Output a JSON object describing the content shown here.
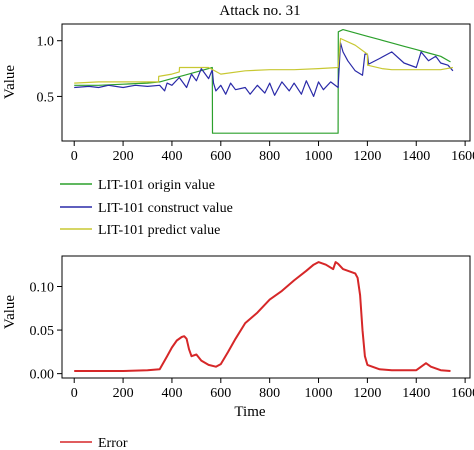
{
  "chart_data": [
    {
      "type": "line",
      "title": "Attack no. 31",
      "xlabel": "",
      "ylabel": "Value",
      "xlim": [
        -50,
        1620
      ],
      "ylim": [
        0.1,
        1.15
      ],
      "xticks": [
        0,
        200,
        400,
        600,
        800,
        1000,
        1200,
        1400,
        1600
      ],
      "yticks": [
        0.5,
        1.0
      ],
      "ytick_labels": [
        "0.5",
        "1.0"
      ],
      "legend_position": "below",
      "series": [
        {
          "name": "LIT-101 origin value",
          "color": "#2ca02c",
          "x": [
            0,
            100,
            200,
            300,
            350,
            400,
            450,
            500,
            550,
            565,
            566,
            700,
            900,
            1080,
            1081,
            1100,
            1150,
            1200,
            1250,
            1300,
            1350,
            1400,
            1450,
            1500,
            1540
          ],
          "y": [
            0.6,
            0.6,
            0.61,
            0.62,
            0.63,
            0.66,
            0.69,
            0.72,
            0.75,
            0.76,
            0.17,
            0.17,
            0.17,
            0.17,
            1.08,
            1.1,
            1.07,
            1.04,
            1.01,
            0.98,
            0.95,
            0.92,
            0.89,
            0.86,
            0.81
          ]
        },
        {
          "name": "LIT-101 construct value",
          "color": "#2a2aa8",
          "x": [
            0,
            60,
            100,
            140,
            200,
            250,
            300,
            350,
            370,
            380,
            400,
            430,
            460,
            480,
            500,
            520,
            550,
            565,
            570,
            580,
            600,
            620,
            640,
            660,
            700,
            720,
            750,
            780,
            800,
            820,
            850,
            880,
            900,
            930,
            950,
            980,
            1000,
            1020,
            1050,
            1080,
            1090,
            1100,
            1120,
            1150,
            1180,
            1190,
            1200,
            1205,
            1250,
            1300,
            1350,
            1400,
            1420,
            1450,
            1480,
            1500,
            1530,
            1550
          ],
          "y": [
            0.58,
            0.59,
            0.58,
            0.6,
            0.58,
            0.6,
            0.59,
            0.6,
            0.55,
            0.62,
            0.6,
            0.67,
            0.58,
            0.7,
            0.64,
            0.75,
            0.66,
            0.74,
            0.62,
            0.55,
            0.6,
            0.52,
            0.62,
            0.56,
            0.58,
            0.52,
            0.6,
            0.53,
            0.62,
            0.51,
            0.63,
            0.55,
            0.62,
            0.52,
            0.64,
            0.5,
            0.63,
            0.56,
            0.63,
            0.58,
            0.98,
            0.9,
            0.82,
            0.73,
            0.69,
            0.88,
            0.88,
            0.79,
            0.84,
            0.9,
            0.8,
            0.76,
            0.9,
            0.82,
            0.86,
            0.8,
            0.78,
            0.73
          ]
        },
        {
          "name": "LIT-101 predict value",
          "color": "#c8c832",
          "x": [
            0,
            100,
            200,
            300,
            345,
            346,
            400,
            430,
            431,
            500,
            550,
            600,
            700,
            800,
            900,
            1000,
            1080,
            1090,
            1150,
            1200,
            1201,
            1260,
            1300,
            1400,
            1500,
            1550
          ],
          "y": [
            0.62,
            0.63,
            0.63,
            0.63,
            0.63,
            0.68,
            0.7,
            0.72,
            0.76,
            0.76,
            0.76,
            0.7,
            0.73,
            0.74,
            0.74,
            0.75,
            0.76,
            1.02,
            0.96,
            0.88,
            0.78,
            0.75,
            0.74,
            0.74,
            0.74,
            0.76
          ]
        }
      ]
    },
    {
      "type": "line",
      "title": "",
      "xlabel": "Time",
      "ylabel": "Value",
      "xlim": [
        -50,
        1620
      ],
      "ylim": [
        -0.005,
        0.135
      ],
      "xticks": [
        0,
        200,
        400,
        600,
        800,
        1000,
        1200,
        1400,
        1600
      ],
      "yticks": [
        0.0,
        0.05,
        0.1
      ],
      "ytick_labels": [
        "0.00",
        "0.05",
        "0.10"
      ],
      "legend_position": "below",
      "series": [
        {
          "name": "Error",
          "color": "#d62728",
          "x": [
            0,
            100,
            200,
            300,
            350,
            380,
            400,
            420,
            440,
            450,
            460,
            470,
            480,
            500,
            520,
            550,
            580,
            600,
            630,
            660,
            700,
            750,
            800,
            850,
            900,
            950,
            980,
            1000,
            1030,
            1060,
            1070,
            1080,
            1100,
            1150,
            1160,
            1170,
            1180,
            1190,
            1200,
            1250,
            1300,
            1350,
            1400,
            1440,
            1460,
            1500,
            1540
          ],
          "y": [
            0.003,
            0.003,
            0.003,
            0.004,
            0.005,
            0.02,
            0.03,
            0.038,
            0.042,
            0.043,
            0.04,
            0.028,
            0.02,
            0.022,
            0.015,
            0.01,
            0.008,
            0.011,
            0.025,
            0.04,
            0.058,
            0.07,
            0.085,
            0.095,
            0.107,
            0.118,
            0.125,
            0.128,
            0.125,
            0.12,
            0.128,
            0.126,
            0.12,
            0.115,
            0.11,
            0.09,
            0.05,
            0.02,
            0.01,
            0.005,
            0.004,
            0.004,
            0.004,
            0.012,
            0.008,
            0.004,
            0.003
          ]
        }
      ]
    }
  ]
}
